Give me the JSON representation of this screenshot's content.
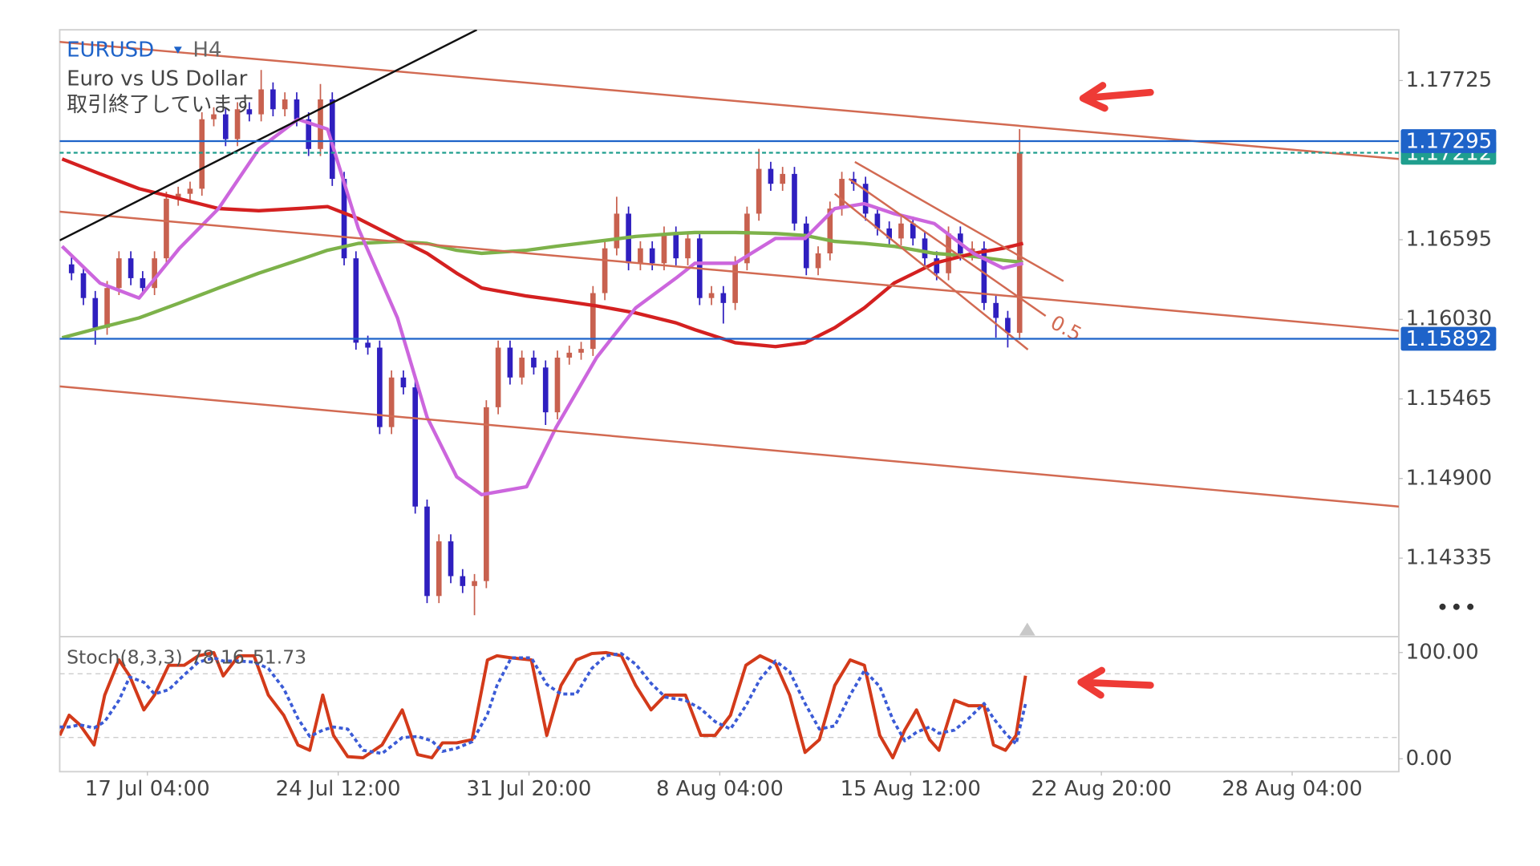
{
  "chart_data": {
    "type": "candlestick",
    "symbol": "EURUSD",
    "timeframe": "H4",
    "description": "Euro vs US Dollar",
    "status": "取引終了しています",
    "xlim": [
      -1,
      112
    ],
    "xticks": [
      {
        "value": 6.4,
        "label": "17 Jul 04:00"
      },
      {
        "value": 22.5,
        "label": "24 Jul 12:00"
      },
      {
        "value": 38.6,
        "label": "31 Jul 20:00"
      },
      {
        "value": 54.7,
        "label": "8 Aug 04:00"
      },
      {
        "value": 70.8,
        "label": "15 Aug 12:00"
      },
      {
        "value": 86.9,
        "label": "22 Aug 20:00"
      },
      {
        "value": 103,
        "label": "28 Aug 04:00"
      }
    ],
    "ylim": [
      1.13778,
      1.18085
    ],
    "yticks": [
      1.17725,
      1.16595,
      {
        "value": 1.1603,
        "label": "1.16030"
      },
      1.15465,
      {
        "value": 1.149,
        "label": "1.14900"
      },
      1.14335
    ],
    "up_color": "#c8614f",
    "down_color": "#2f1fbf",
    "open": [
      1.1642,
      1.16357,
      1.16181,
      1.1597,
      1.16252,
      1.16463,
      1.16322,
      1.16252,
      1.16463,
      1.16886,
      1.16921,
      1.16957,
      1.1745,
      1.17485,
      1.17309,
      1.17521,
      1.17485,
      1.17662,
      1.17521,
      1.17591,
      1.1745,
      1.17239,
      1.17591,
      1.17027,
      1.16463,
      1.15864,
      1.15829,
      1.15265,
      1.15617,
      1.15547,
      1.14701,
      1.14066,
      1.14454,
      1.14207,
      1.14137,
      1.14172,
      1.15406,
      1.15829,
      1.15617,
      1.15758,
      1.15688,
      1.1537,
      1.15758,
      1.15793,
      1.1582,
      1.16216,
      1.16534,
      1.1678,
      1.16428,
      1.16534,
      1.16428,
      1.16639,
      1.16463,
      1.16604,
      1.16181,
      1.16216,
      1.16146,
      1.16428,
      1.1678,
      1.17098,
      1.16992,
      1.17062,
      1.1671,
      1.16393,
      1.16498,
      1.16816,
      1.17027,
      1.16992,
      1.1678,
      1.16675,
      1.16604,
      1.1671,
      1.16604,
      1.16463,
      1.16357,
      1.16639,
      1.16498,
      1.16533,
      1.16146,
      1.1604,
      1.15934
    ],
    "high": [
      1.1647,
      1.16407,
      1.16231,
      1.16302,
      1.16513,
      1.16513,
      1.16372,
      1.16513,
      1.16936,
      1.16971,
      1.17007,
      1.175,
      1.17535,
      1.17535,
      1.17571,
      1.17571,
      1.178,
      1.17712,
      1.17641,
      1.17641,
      1.175,
      1.177,
      1.17641,
      1.17077,
      1.16513,
      1.15914,
      1.15879,
      1.15667,
      1.15667,
      1.15597,
      1.14751,
      1.14504,
      1.14504,
      1.14257,
      1.14222,
      1.15456,
      1.15879,
      1.15879,
      1.15808,
      1.15808,
      1.15738,
      1.15808,
      1.15843,
      1.1587,
      1.16266,
      1.16584,
      1.169,
      1.1683,
      1.16584,
      1.16584,
      1.16689,
      1.16689,
      1.16654,
      1.16654,
      1.16266,
      1.16266,
      1.16478,
      1.1683,
      1.1724,
      1.17148,
      1.17112,
      1.17112,
      1.1676,
      1.16548,
      1.16866,
      1.17077,
      1.17077,
      1.17042,
      1.1683,
      1.16725,
      1.1676,
      1.1676,
      1.16654,
      1.16513,
      1.16689,
      1.16689,
      1.16583,
      1.16583,
      1.16196,
      1.1609,
      1.1738
    ],
    "low": [
      1.16307,
      1.16131,
      1.1585,
      1.1592,
      1.16202,
      1.16272,
      1.16202,
      1.16202,
      1.16413,
      1.16836,
      1.16871,
      1.16907,
      1.174,
      1.17259,
      1.17259,
      1.17435,
      1.17435,
      1.17471,
      1.17471,
      1.174,
      1.17189,
      1.17189,
      1.16977,
      1.16413,
      1.15814,
      1.15779,
      1.15215,
      1.15215,
      1.15497,
      1.14651,
      1.14016,
      1.14016,
      1.14157,
      1.14087,
      1.1393,
      1.14122,
      1.15356,
      1.15567,
      1.15567,
      1.15638,
      1.1528,
      1.1532,
      1.15708,
      1.15743,
      1.1577,
      1.16166,
      1.16484,
      1.16378,
      1.16378,
      1.16378,
      1.16378,
      1.16413,
      1.16413,
      1.16131,
      1.16131,
      1.16,
      1.16096,
      1.16378,
      1.1673,
      1.16942,
      1.16942,
      1.1666,
      1.16343,
      1.16343,
      1.16448,
      1.16766,
      1.16942,
      1.1673,
      1.16625,
      1.16554,
      1.16554,
      1.16554,
      1.16413,
      1.16307,
      1.16307,
      1.16448,
      1.16448,
      1.16096,
      1.159,
      1.1583,
      1.15884
    ],
    "close": [
      1.16357,
      1.16181,
      1.1597,
      1.16252,
      1.16463,
      1.16322,
      1.16252,
      1.16463,
      1.16886,
      1.16921,
      1.16957,
      1.1745,
      1.17485,
      1.17309,
      1.17521,
      1.17485,
      1.17662,
      1.17521,
      1.17591,
      1.1745,
      1.17239,
      1.17591,
      1.17027,
      1.16463,
      1.15864,
      1.15829,
      1.15265,
      1.15617,
      1.15547,
      1.14701,
      1.14066,
      1.14454,
      1.14207,
      1.14137,
      1.14172,
      1.15406,
      1.15829,
      1.15617,
      1.15758,
      1.15688,
      1.1537,
      1.15758,
      1.15793,
      1.1582,
      1.16216,
      1.16534,
      1.1678,
      1.16428,
      1.16534,
      1.16428,
      1.16639,
      1.16463,
      1.16604,
      1.16181,
      1.16216,
      1.16146,
      1.16428,
      1.1678,
      1.17098,
      1.16992,
      1.17062,
      1.1671,
      1.16393,
      1.16498,
      1.16816,
      1.17027,
      1.16992,
      1.1678,
      1.16675,
      1.16604,
      1.1671,
      1.16604,
      1.16463,
      1.16357,
      1.16639,
      1.16498,
      1.16533,
      1.16146,
      1.1604,
      1.15934,
      1.17212
    ],
    "ma_x": [
      -0.8,
      2.4,
      5.7,
      9.1,
      12.4,
      15.8,
      19.1,
      21.6,
      24.2,
      27.5,
      30.0,
      32.5,
      34.6,
      38.4,
      40.9,
      44.3,
      47.6,
      51.0,
      52.6,
      56.0,
      59.4,
      61.9,
      64.4,
      66.9,
      69.4,
      72.8,
      76.1,
      78.6,
      80.3
    ],
    "indicators": [
      {
        "color": "#7db24a",
        "values": [
          1.15899,
          1.1597,
          1.1604,
          1.16146,
          1.16252,
          1.16357,
          1.16449,
          1.1652,
          1.16569,
          1.16583,
          1.16569,
          1.1652,
          1.16498,
          1.1652,
          1.16548,
          1.16583,
          1.16618,
          1.16639,
          1.16646,
          1.16646,
          1.16639,
          1.16625,
          1.16583,
          1.16569,
          1.16548,
          1.16498,
          1.16477,
          1.16449,
          1.16435
        ]
      },
      {
        "color": "#d42020",
        "values": [
          1.17168,
          1.17062,
          1.16957,
          1.16886,
          1.16816,
          1.16801,
          1.16816,
          1.1683,
          1.16745,
          1.16604,
          1.16498,
          1.16357,
          1.16252,
          1.16195,
          1.16167,
          1.16125,
          1.16075,
          1.16005,
          1.15956,
          1.15864,
          1.15836,
          1.15864,
          1.1597,
          1.16111,
          1.16287,
          1.16428,
          1.16498,
          1.16534,
          1.16569
        ]
      },
      {
        "color": "#cc66dd",
        "values": [
          1.16548,
          1.16287,
          1.16181,
          1.16534,
          1.16816,
          1.17239,
          1.1745,
          1.1738,
          1.16675,
          1.1604,
          1.15335,
          1.14912,
          1.14785,
          1.14842,
          1.15265,
          1.15758,
          1.16111,
          1.16322,
          1.16428,
          1.16428,
          1.16604,
          1.16604,
          1.16816,
          1.16851,
          1.1678,
          1.1671,
          1.16498,
          1.16393,
          1.16428
        ]
      }
    ],
    "drawings": [
      {
        "color": "#d26a52",
        "x": [
          -1,
          112
        ],
        "y": [
          1.17999,
          1.17168
        ]
      },
      {
        "color": "#d26a52",
        "x": [
          -1,
          112
        ],
        "y": [
          1.16794,
          1.15949
        ]
      },
      {
        "color": "#d26a52",
        "x": [
          -1,
          112
        ],
        "y": [
          1.15554,
          1.14701
        ]
      },
      {
        "color": "#111111",
        "x": [
          -1,
          34.2
        ],
        "y": [
          1.1659,
          1.18085
        ]
      },
      {
        "color": "#d26a52",
        "x": [
          66.1,
          83.7
        ],
        "y": [
          1.17147,
          1.16301
        ]
      },
      {
        "color": "#d26a52",
        "x": [
          65.6,
          82.2
        ],
        "y": [
          1.17027,
          1.16054
        ],
        "label": "0.5"
      },
      {
        "color": "#d26a52",
        "x": [
          64.4,
          80.7
        ],
        "y": [
          1.16921,
          1.15815
        ]
      }
    ],
    "price_lines": [
      {
        "value": 1.17212,
        "color": "#1f9e8e",
        "dashed": true
      },
      {
        "value": 1.17295,
        "color": "#1e63c9",
        "dashed": false
      },
      {
        "value": 1.15892,
        "color": "#1e63c9",
        "dashed": false
      }
    ],
    "stochastic": {
      "label": "Stoch(8,3,3)",
      "ylim": [
        -12.1,
        115
      ],
      "yticks": [
        {
          "value": 100,
          "label": "100.00"
        },
        {
          "value": 0,
          "label": "0.00"
        }
      ],
      "levels": [
        80,
        20
      ],
      "x": [
        -1.0,
        -0.2,
        0.7,
        1.9,
        2.8,
        4.0,
        4.9,
        6.1,
        7.0,
        8.2,
        9.5,
        10.7,
        12.0,
        12.8,
        14.1,
        15.4,
        16.6,
        17.9,
        19.1,
        20.1,
        21.2,
        22.1,
        23.3,
        24.6,
        26.2,
        27.9,
        29.2,
        30.4,
        31.3,
        32.5,
        33.8,
        35.1,
        35.9,
        37.1,
        38.8,
        40.1,
        41.3,
        42.6,
        43.9,
        45.1,
        46.4,
        47.6,
        48.9,
        50.1,
        51.8,
        53.1,
        54.3,
        55.6,
        56.9,
        58.1,
        59.4,
        60.6,
        61.9,
        63.1,
        64.4,
        65.7,
        66.9,
        68.2,
        69.3,
        70.3,
        71.3,
        72.4,
        73.2,
        74.5,
        75.7,
        77.0,
        77.8,
        78.8,
        79.7,
        80.5
      ],
      "k": {
        "color": "#d33a1a",
        "values": [
          22,
          41,
          32,
          13,
          60,
          93,
          78,
          46,
          60,
          88,
          88,
          97,
          100,
          78,
          97,
          97,
          60,
          41,
          13,
          8,
          60,
          22,
          2,
          1,
          13,
          46,
          4,
          1,
          15,
          15,
          18,
          93,
          97,
          95,
          93,
          22,
          69,
          93,
          99,
          100,
          97,
          69,
          46,
          60,
          60,
          22,
          22,
          41,
          88,
          97,
          90,
          60,
          6,
          18,
          69,
          93,
          88,
          22,
          1,
          27,
          46,
          18,
          8,
          55,
          50,
          50,
          13,
          8,
          22,
          78.16
        ]
      },
      "d": {
        "color": "#3b5bd6",
        "values": [
          30,
          30,
          32,
          29,
          35,
          55,
          77,
          72,
          61,
          65,
          79,
          91,
          95,
          92,
          92,
          91,
          85,
          66,
          38,
          21,
          27,
          30,
          28,
          8,
          5,
          20,
          21,
          17,
          7,
          10,
          16,
          42,
          69,
          95,
          95,
          70,
          61,
          61,
          85,
          97,
          99,
          89,
          71,
          58,
          55,
          47,
          35,
          28,
          50,
          75,
          92,
          82,
          52,
          28,
          31,
          60,
          83,
          68,
          37,
          17,
          25,
          30,
          24,
          27,
          38,
          52,
          38,
          24,
          14,
          51.73
        ]
      }
    }
  }
}
